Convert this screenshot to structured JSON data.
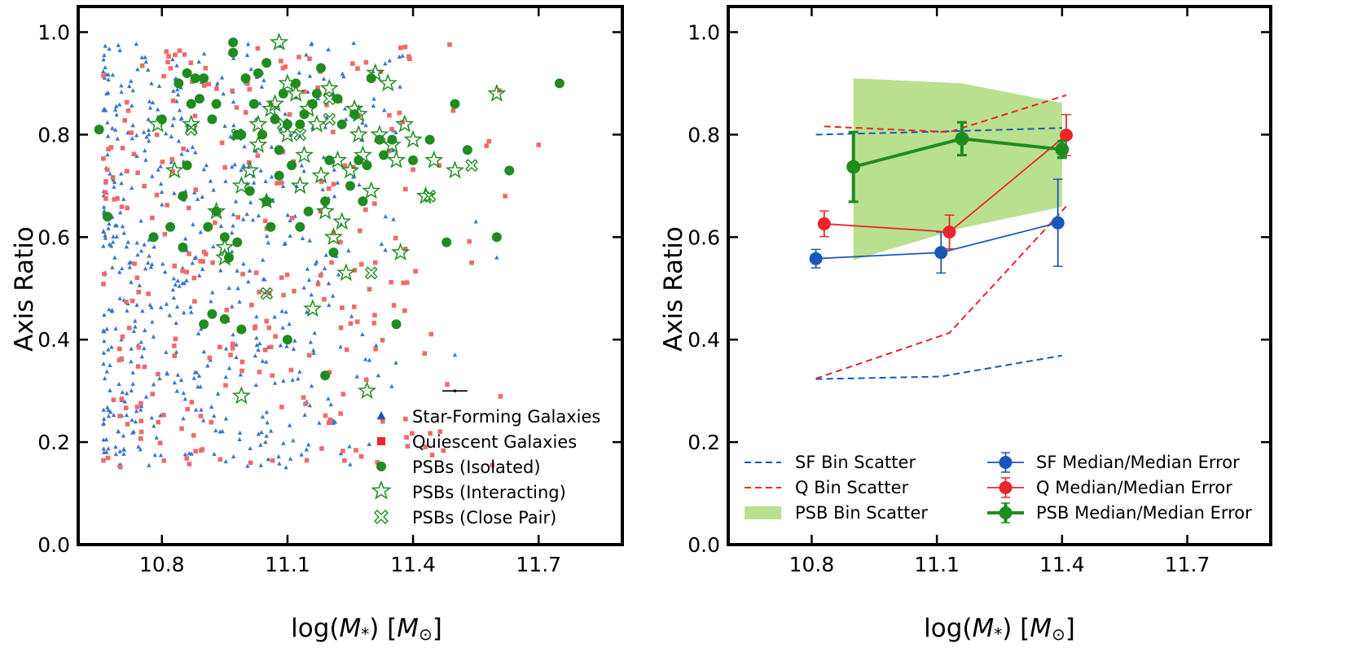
{
  "colors": {
    "sf": "#1a56b8",
    "sf_scatter": "#3a75c8",
    "q": "#e8262b",
    "q_scatter": "#f06a6a",
    "psb": "#1f8c1f",
    "psb_fill": "#b9e08f",
    "axis": "#000000"
  },
  "chart_data": [
    {
      "type": "scatter",
      "xlabel": "log(M*) [M⊙]",
      "xlabel_main": "log(",
      "xlabel_m": "M",
      "xlabel_sub": "*",
      "xlabel_mid": ") [",
      "xlabel_unit": "M",
      "xlabel_unit_sub": "⊙",
      "xlabel_end": "]",
      "ylabel": "Axis Ratio",
      "xlim": [
        10.6,
        11.9
      ],
      "ylim": [
        0.0,
        1.05
      ],
      "xticks": [
        10.8,
        11.1,
        11.4,
        11.7
      ],
      "xtick_labels": [
        "10.8",
        "11.1",
        "11.4",
        "11.7"
      ],
      "yticks": [
        0.0,
        0.2,
        0.4,
        0.6,
        0.8,
        1.0
      ],
      "ytick_labels": [
        "0.0",
        "0.2",
        "0.4",
        "0.6",
        "0.8",
        "1.0"
      ],
      "legend": [
        {
          "label": "Star-Forming Galaxies",
          "marker": "triangle"
        },
        {
          "label": "Quiescent Galaxies",
          "marker": "square"
        },
        {
          "label": "PSBs (Isolated)",
          "marker": "circle"
        },
        {
          "label": "PSBs (Interacting)",
          "marker": "star"
        },
        {
          "label": "PSBs (Close Pair)",
          "marker": "xcircle"
        }
      ],
      "error_bar": {
        "x": 11.5,
        "y": 0.3,
        "xerr": 0.03
      },
      "psb_isolated": {
        "x": [
          10.65,
          10.67,
          10.78,
          10.82,
          10.85,
          10.86,
          10.87,
          10.88,
          10.9,
          10.92,
          10.93,
          10.95,
          10.97,
          10.97,
          10.98,
          10.99,
          11.0,
          11.02,
          11.04,
          11.05,
          11.07,
          11.08,
          11.09,
          11.1,
          11.12,
          11.13,
          11.14,
          11.16,
          11.18,
          11.2,
          11.22,
          11.25,
          11.27,
          11.3,
          11.33,
          11.36,
          11.4,
          11.44,
          11.48,
          11.5,
          11.53,
          11.6,
          11.63,
          11.75,
          10.84,
          10.89,
          10.93,
          10.98,
          11.03,
          11.08,
          11.11,
          11.15,
          11.19,
          11.23,
          11.26,
          11.29,
          11.32,
          11.35,
          10.8,
          10.86,
          10.91,
          10.96,
          11.01,
          11.06,
          11.13,
          11.17,
          11.21,
          11.28,
          10.95,
          10.92,
          10.9,
          10.99,
          11.1,
          11.19,
          10.85,
          11.05
        ],
        "y": [
          0.81,
          0.64,
          0.6,
          0.62,
          0.68,
          0.74,
          0.86,
          0.91,
          0.91,
          0.83,
          0.86,
          0.6,
          0.96,
          0.98,
          0.59,
          0.8,
          0.91,
          0.86,
          0.8,
          0.94,
          0.83,
          0.77,
          0.88,
          0.82,
          0.9,
          0.82,
          0.84,
          0.86,
          0.93,
          0.75,
          0.87,
          0.7,
          0.75,
          0.91,
          0.76,
          0.43,
          0.75,
          0.79,
          0.59,
          0.86,
          0.77,
          0.6,
          0.73,
          0.9,
          0.9,
          0.87,
          0.65,
          0.8,
          0.92,
          0.72,
          0.74,
          0.65,
          0.67,
          0.82,
          0.84,
          0.74,
          0.79,
          0.79,
          0.83,
          0.92,
          0.62,
          0.56,
          0.69,
          0.62,
          0.62,
          0.88,
          0.57,
          0.67,
          0.44,
          0.45,
          0.43,
          0.42,
          0.4,
          0.33,
          0.58,
          0.67
        ],
        "big": [
          [
            11.05,
            0.67
          ]
        ]
      },
      "psb_interacting": {
        "x": [
          10.79,
          10.83,
          10.87,
          10.93,
          10.95,
          10.99,
          11.01,
          11.03,
          11.07,
          11.08,
          11.1,
          11.12,
          11.15,
          11.17,
          11.19,
          11.21,
          11.23,
          11.25,
          11.27,
          11.28,
          11.3,
          11.32,
          11.34,
          11.36,
          11.38,
          11.4,
          11.43,
          11.45,
          11.5,
          11.6,
          11.03,
          11.06,
          11.1,
          11.14,
          11.18,
          11.22,
          11.26,
          11.31,
          11.35,
          11.37,
          11.2,
          11.16,
          11.24,
          11.29,
          11.13,
          10.99,
          11.27,
          10.95
        ],
        "y": [
          0.82,
          0.73,
          0.82,
          0.65,
          0.56,
          0.7,
          0.73,
          0.78,
          0.86,
          0.98,
          0.9,
          0.88,
          0.85,
          0.82,
          0.65,
          0.6,
          0.63,
          0.73,
          0.8,
          0.76,
          0.69,
          0.8,
          0.9,
          0.75,
          0.82,
          0.79,
          0.68,
          0.75,
          0.73,
          0.88,
          0.82,
          0.85,
          0.8,
          0.76,
          0.72,
          0.75,
          0.85,
          0.92,
          0.78,
          0.57,
          0.89,
          0.46,
          0.53,
          0.3,
          0.7,
          0.29,
          0.84,
          0.58
        ],
        "big": []
      },
      "psb_closepair": {
        "x": [
          10.87,
          11.05,
          11.13,
          11.2,
          11.3,
          11.44,
          11.54,
          10.98,
          11.09,
          11.2
        ],
        "y": [
          0.81,
          0.49,
          0.8,
          0.83,
          0.53,
          0.68,
          0.74,
          0.8,
          0.82,
          0.87
        ]
      }
    },
    {
      "type": "line",
      "xlabel": "log(M*) [M⊙]",
      "ylabel": "Axis Ratio",
      "xlim": [
        10.6,
        11.9
      ],
      "ylim": [
        0.0,
        1.05
      ],
      "xticks": [
        10.8,
        11.1,
        11.4,
        11.7
      ],
      "xtick_labels": [
        "10.8",
        "11.1",
        "11.4",
        "11.7"
      ],
      "yticks": [
        0.0,
        0.2,
        0.4,
        0.6,
        0.8,
        1.0
      ],
      "ytick_labels": [
        "0.0",
        "0.2",
        "0.4",
        "0.6",
        "0.8",
        "1.0"
      ],
      "legend_left": [
        {
          "label": "SF Bin Scatter",
          "style": "dash-sf"
        },
        {
          "label": "Q Bin Scatter",
          "style": "dash-q"
        },
        {
          "label": "PSB Bin Scatter",
          "style": "fill-psb"
        }
      ],
      "legend_right": [
        {
          "label": "SF Median/Median Error",
          "style": "err-sf"
        },
        {
          "label": "Q Median/Median Error",
          "style": "err-q"
        },
        {
          "label": "PSB Median/Median Error",
          "style": "err-psb"
        }
      ],
      "sf_scatter_upper": {
        "x": [
          10.81,
          11.11,
          11.4
        ],
        "y": [
          0.8,
          0.806,
          0.813
        ]
      },
      "sf_scatter_lower": {
        "x": [
          10.81,
          11.11,
          11.4
        ],
        "y": [
          0.323,
          0.328,
          0.369
        ]
      },
      "q_scatter_upper": {
        "x": [
          10.83,
          11.13,
          11.41
        ],
        "y": [
          0.816,
          0.805,
          0.877
        ]
      },
      "q_scatter_lower": {
        "x": [
          10.81,
          11.13,
          11.41
        ],
        "y": [
          0.324,
          0.413,
          0.66
        ]
      },
      "psb_fill_upper": {
        "x": [
          10.9,
          11.16,
          11.4
        ],
        "y": [
          0.91,
          0.9,
          0.862
        ]
      },
      "psb_fill_lower": {
        "x": [
          10.9,
          11.16,
          11.4
        ],
        "y": [
          0.555,
          0.618,
          0.659
        ]
      },
      "sf_median": {
        "x": [
          10.81,
          11.11,
          11.39
        ],
        "y": [
          0.558,
          0.57,
          0.628
        ],
        "err": [
          0.018,
          0.04,
          0.085
        ]
      },
      "q_median": {
        "x": [
          10.83,
          11.13,
          11.41
        ],
        "y": [
          0.626,
          0.61,
          0.799
        ],
        "err": [
          0.025,
          0.033,
          0.04
        ]
      },
      "psb_median": {
        "x": [
          10.9,
          11.16,
          11.4
        ],
        "y": [
          0.737,
          0.792,
          0.771
        ],
        "err": [
          0.068,
          0.032,
          0.016
        ]
      }
    }
  ]
}
